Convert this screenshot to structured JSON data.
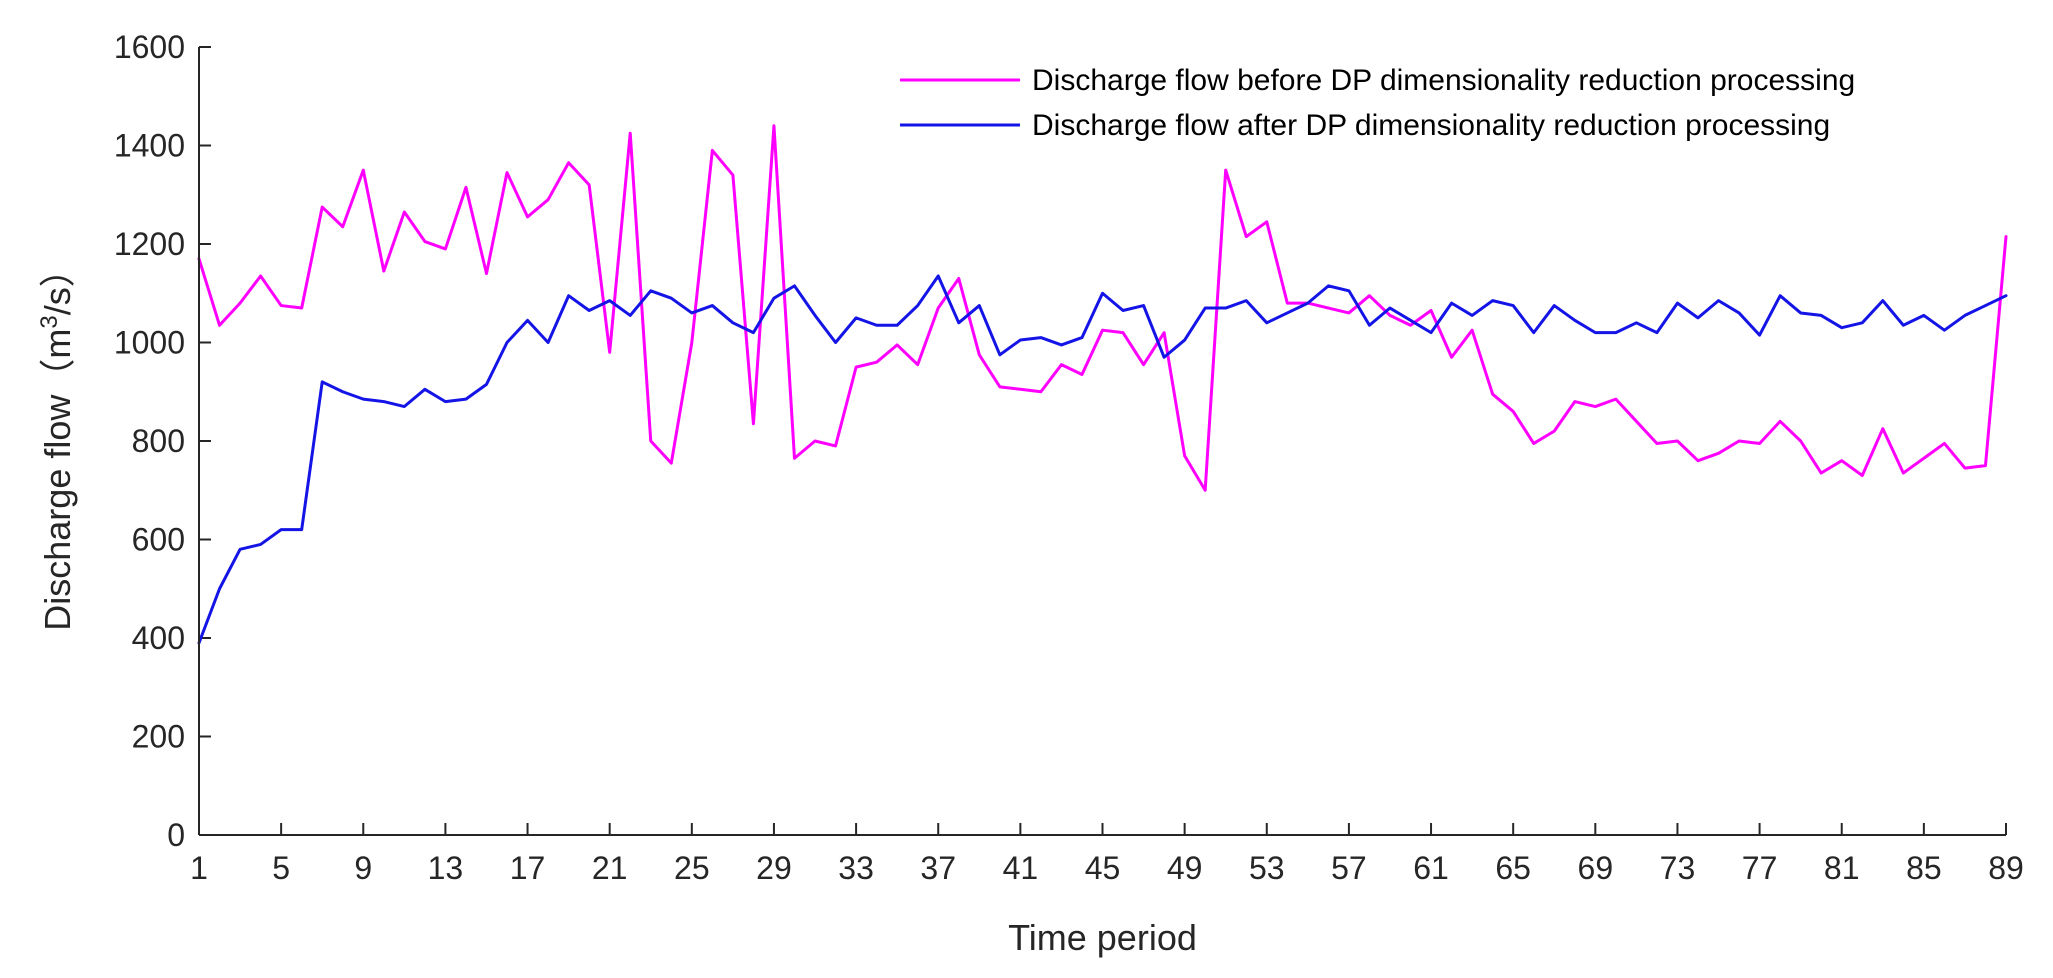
{
  "chart_data": {
    "type": "line",
    "title": "",
    "xlabel": "Time period",
    "ylabel": {
      "prefix": "Discharge flow（m",
      "superscript": "3",
      "suffix": "/s）"
    },
    "xlim": [
      1,
      89
    ],
    "ylim": [
      0,
      1600
    ],
    "xticks": [
      1,
      5,
      9,
      13,
      17,
      21,
      25,
      29,
      33,
      37,
      41,
      45,
      49,
      53,
      57,
      61,
      65,
      69,
      73,
      77,
      81,
      85,
      89
    ],
    "yticks": [
      0,
      200,
      400,
      600,
      800,
      1000,
      1200,
      1400,
      1600
    ],
    "legend_position": "top-right",
    "series": [
      {
        "name": "Discharge flow before DP dimensionality reduction processing",
        "color": "#FF00FF",
        "values": [
          1170,
          1035,
          1080,
          1135,
          1075,
          1070,
          1275,
          1235,
          1350,
          1145,
          1265,
          1205,
          1190,
          1315,
          1140,
          1345,
          1255,
          1290,
          1365,
          1320,
          980,
          1425,
          800,
          755,
          1000,
          1390,
          1340,
          835,
          1440,
          765,
          800,
          790,
          950,
          960,
          995,
          955,
          1070,
          1130,
          975,
          910,
          905,
          900,
          955,
          935,
          1025,
          1020,
          955,
          1020,
          770,
          700,
          1350,
          1215,
          1245,
          1080,
          1080,
          1070,
          1060,
          1095,
          1055,
          1035,
          1065,
          970,
          1025,
          895,
          860,
          795,
          820,
          880,
          870,
          885,
          840,
          795,
          800,
          760,
          775,
          800,
          795,
          840,
          800,
          735,
          760,
          730,
          825,
          735,
          765,
          795,
          745,
          750,
          1215
        ]
      },
      {
        "name": "Discharge flow after DP dimensionality reduction processing",
        "color": "#1414E6",
        "values": [
          390,
          500,
          580,
          590,
          620,
          620,
          920,
          900,
          885,
          880,
          870,
          905,
          880,
          885,
          915,
          1000,
          1045,
          1000,
          1095,
          1065,
          1085,
          1055,
          1105,
          1090,
          1060,
          1075,
          1040,
          1020,
          1090,
          1115,
          1055,
          1000,
          1050,
          1035,
          1035,
          1075,
          1135,
          1040,
          1075,
          975,
          1005,
          1010,
          995,
          1010,
          1100,
          1065,
          1075,
          970,
          1005,
          1070,
          1070,
          1085,
          1040,
          1060,
          1080,
          1115,
          1105,
          1035,
          1070,
          1045,
          1020,
          1080,
          1055,
          1085,
          1075,
          1020,
          1075,
          1045,
          1020,
          1020,
          1040,
          1020,
          1080,
          1050,
          1085,
          1060,
          1015,
          1095,
          1060,
          1055,
          1030,
          1040,
          1085,
          1035,
          1055,
          1025,
          1055,
          1075,
          1095
        ]
      }
    ]
  }
}
